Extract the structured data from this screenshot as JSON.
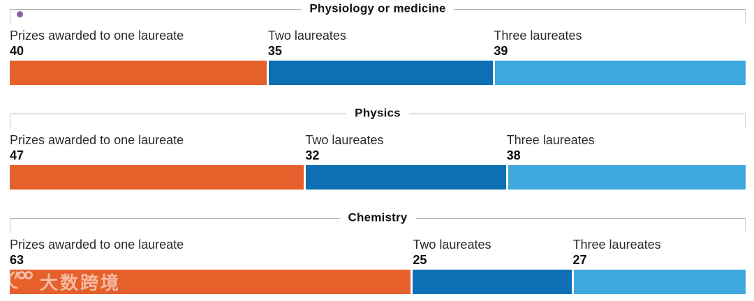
{
  "page": {
    "background": "#ffffff"
  },
  "colors": {
    "one_laureate": "#e5602b",
    "two_laureates": "#0e6fb4",
    "three_laureates": "#3da8de",
    "frame_line": "#b0b0b0",
    "annotation_dot": "#8f5fa8",
    "label_text": "#2a2a2a",
    "value_text": "#0d0d0d",
    "watermark": "rgba(255,240,234,0.62)"
  },
  "chart_data": [
    {
      "type": "bar",
      "orientation": "horizontal",
      "stacked": true,
      "title": "Physiology or medicine",
      "annotation_dot": true,
      "total": 114,
      "segments": [
        {
          "label": "Prizes awarded to one laureate",
          "value": 40,
          "color": "#e5602b"
        },
        {
          "label": "Two laureates",
          "value": 35,
          "color": "#0e6fb4"
        },
        {
          "label": "Three laureates",
          "value": 39,
          "color": "#3da8de"
        }
      ]
    },
    {
      "type": "bar",
      "orientation": "horizontal",
      "stacked": true,
      "title": "Physics",
      "annotation_dot": false,
      "total": 117,
      "segments": [
        {
          "label": "Prizes awarded to one laureate",
          "value": 47,
          "color": "#e5602b"
        },
        {
          "label": "Two laureates",
          "value": 32,
          "color": "#0e6fb4"
        },
        {
          "label": "Three laureates",
          "value": 38,
          "color": "#3da8de"
        }
      ]
    },
    {
      "type": "bar",
      "orientation": "horizontal",
      "stacked": true,
      "title": "Chemistry",
      "annotation_dot": false,
      "total": 115,
      "segments": [
        {
          "label": "Prizes awarded to one laureate",
          "value": 63,
          "color": "#e5602b"
        },
        {
          "label": "Two laureates",
          "value": 25,
          "color": "#0e6fb4"
        },
        {
          "label": "Three laureates",
          "value": 27,
          "color": "#3da8de"
        }
      ]
    }
  ],
  "watermark": {
    "logo": "swoosh-100-logo",
    "text": "大数跨境"
  }
}
